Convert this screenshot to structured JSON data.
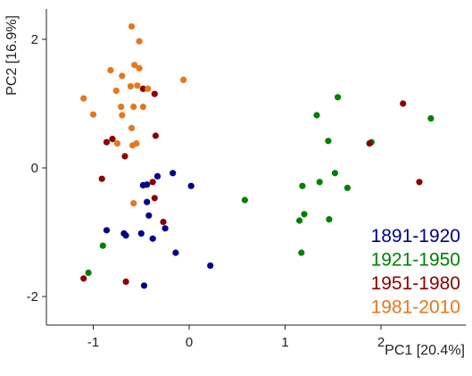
{
  "chart_data": {
    "type": "scatter",
    "xlabel": "PC1 [20.4%]",
    "ylabel": "PC2 [16.9%]",
    "xlim": [
      -1.5,
      2.75
    ],
    "ylim": [
      -2.3,
      2.55
    ],
    "x_ticks": [
      {
        "value": -1,
        "label": "-1"
      },
      {
        "value": 0,
        "label": "0"
      },
      {
        "value": 1,
        "label": "1"
      },
      {
        "value": 2,
        "label": "2"
      }
    ],
    "y_ticks": [
      {
        "value": -2,
        "label": "-2"
      },
      {
        "value": 0,
        "label": "0"
      },
      {
        "value": 2,
        "label": "2"
      }
    ],
    "grid": false,
    "legend_position": "bottom-right",
    "series": [
      {
        "name": "1891-1920",
        "color": "#00008b",
        "points": [
          [
            -0.17,
            -0.08
          ],
          [
            -0.48,
            -0.27
          ],
          [
            -0.44,
            -0.26
          ],
          [
            -0.33,
            -0.13
          ],
          [
            0.02,
            -0.28
          ],
          [
            -0.44,
            -0.53
          ],
          [
            -0.42,
            -0.74
          ],
          [
            -0.86,
            -0.97
          ],
          [
            -0.68,
            -1.02
          ],
          [
            -0.66,
            -1.05
          ],
          [
            -0.5,
            -1.02
          ],
          [
            -0.38,
            -1.1
          ],
          [
            -0.25,
            -0.94
          ],
          [
            -0.14,
            -1.32
          ],
          [
            0.22,
            -1.52
          ],
          [
            -0.47,
            -1.83
          ]
        ]
      },
      {
        "name": "1921-1950",
        "color": "#008000",
        "points": [
          [
            1.55,
            1.1
          ],
          [
            1.33,
            0.82
          ],
          [
            2.52,
            0.77
          ],
          [
            1.45,
            0.42
          ],
          [
            1.9,
            0.4
          ],
          [
            1.52,
            -0.08
          ],
          [
            1.36,
            -0.22
          ],
          [
            1.18,
            -0.28
          ],
          [
            1.65,
            -0.31
          ],
          [
            0.58,
            -0.5
          ],
          [
            1.2,
            -0.72
          ],
          [
            1.15,
            -0.82
          ],
          [
            1.46,
            -0.8
          ],
          [
            1.17,
            -1.32
          ],
          [
            -0.9,
            -1.21
          ],
          [
            -1.05,
            -1.63
          ]
        ]
      },
      {
        "name": "1951-1980",
        "color": "#8b0000",
        "points": [
          [
            -0.48,
            1.23
          ],
          [
            -0.36,
            1.15
          ],
          [
            2.23,
            1.0
          ],
          [
            -0.35,
            0.5
          ],
          [
            -0.8,
            0.45
          ],
          [
            -0.86,
            0.4
          ],
          [
            1.88,
            0.38
          ],
          [
            -0.67,
            0.18
          ],
          [
            -0.91,
            -0.17
          ],
          [
            -0.38,
            -0.22
          ],
          [
            2.4,
            -0.22
          ],
          [
            -0.36,
            -0.47
          ],
          [
            -0.27,
            -0.84
          ],
          [
            -1.1,
            -1.72
          ],
          [
            -0.66,
            -1.77
          ]
        ]
      },
      {
        "name": "1981-2010",
        "color": "#e8761c",
        "points": [
          [
            -0.6,
            2.2
          ],
          [
            -0.52,
            1.97
          ],
          [
            -0.57,
            1.6
          ],
          [
            -0.82,
            1.52
          ],
          [
            -0.7,
            1.43
          ],
          [
            -0.52,
            1.55
          ],
          [
            -0.06,
            1.37
          ],
          [
            -0.61,
            1.27
          ],
          [
            -0.76,
            1.2
          ],
          [
            -0.54,
            1.28
          ],
          [
            -0.43,
            1.23
          ],
          [
            -1.1,
            1.08
          ],
          [
            -0.71,
            0.95
          ],
          [
            -0.58,
            0.95
          ],
          [
            -0.48,
            0.95
          ],
          [
            -1.0,
            0.83
          ],
          [
            -0.7,
            0.82
          ],
          [
            -0.6,
            0.62
          ],
          [
            -0.55,
            0.38
          ],
          [
            -0.75,
            0.38
          ],
          [
            -0.59,
            0.35
          ],
          [
            -0.58,
            -0.55
          ]
        ]
      }
    ]
  }
}
